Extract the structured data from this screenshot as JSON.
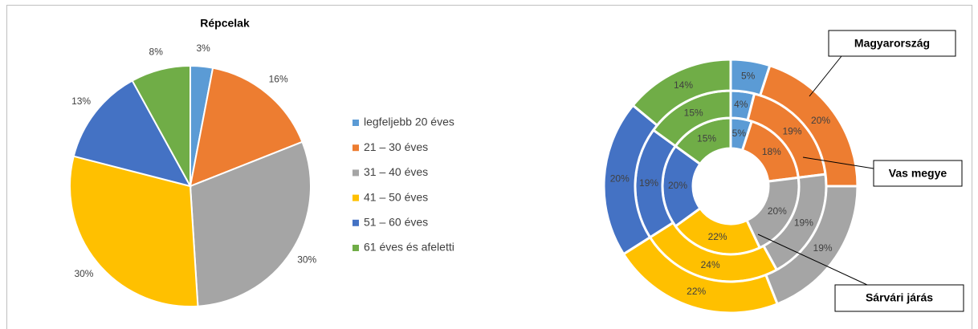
{
  "chart_data": [
    {
      "type": "pie",
      "title": "Répcelak",
      "categories": [
        "legfeljebb 20 éves",
        "21 – 30 éves",
        "31 – 40 éves",
        "41 – 50 éves",
        "51 – 60 éves",
        "61 éves és afeletti"
      ],
      "values": [
        3,
        16,
        30,
        30,
        13,
        8
      ],
      "value_labels": [
        "3%",
        "16%",
        "30%",
        "30%",
        "13%",
        "8%"
      ],
      "colors": [
        "#5b9bd5",
        "#ed7d31",
        "#a5a5a5",
        "#ffc000",
        "#4472c4",
        "#70ad47"
      ],
      "legend": "right"
    },
    {
      "type": "donut",
      "colors": [
        "#5b9bd5",
        "#ed7d31",
        "#a5a5a5",
        "#ffc000",
        "#4472c4",
        "#70ad47"
      ],
      "series": [
        {
          "name": "Sárvári járás",
          "values": [
            5,
            18,
            20,
            22,
            20,
            15
          ],
          "value_labels": [
            "5%",
            "18%",
            "20%",
            "22%",
            "20%",
            "15%"
          ]
        },
        {
          "name": "Vas megye",
          "values": [
            4,
            19,
            19,
            24,
            19,
            15
          ],
          "value_labels": [
            "4%",
            "19%",
            "19%",
            "24%",
            "19%",
            "15%"
          ]
        },
        {
          "name": "Magyarország",
          "values": [
            5,
            20,
            19,
            22,
            20,
            14
          ],
          "value_labels": [
            "5%",
            "20%",
            "19%",
            "22%",
            "20%",
            "14%"
          ]
        }
      ]
    }
  ]
}
